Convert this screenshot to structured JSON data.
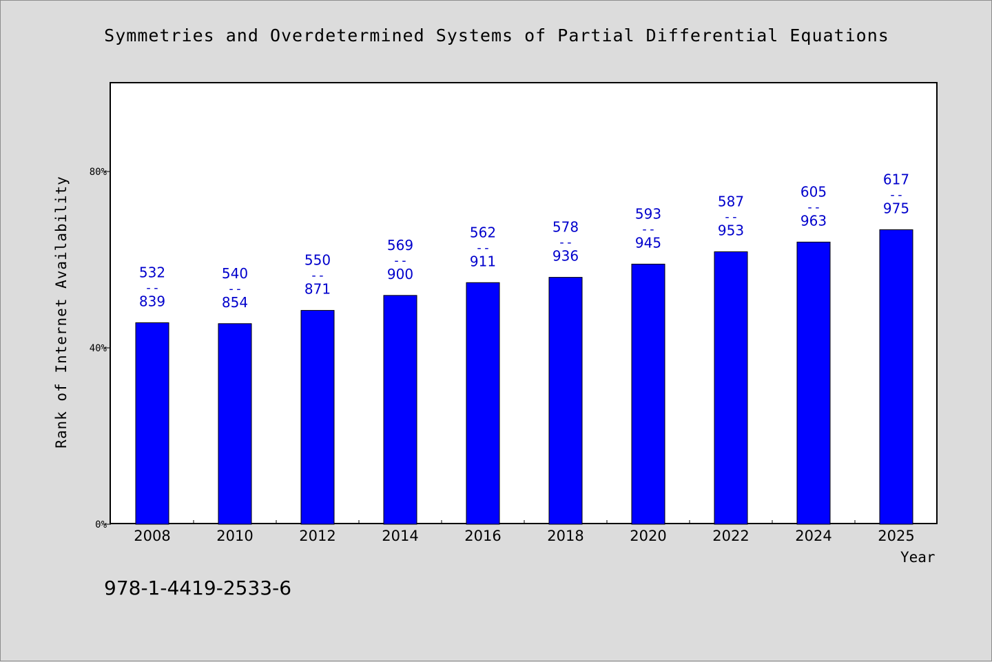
{
  "chart_data": {
    "type": "bar",
    "title": "Symmetries and Overdetermined Systems of Partial Differential Equations",
    "xlabel": "Year",
    "ylabel": "Rank of Internet Availability",
    "categories": [
      "2008",
      "2010",
      "2012",
      "2014",
      "2016",
      "2018",
      "2020",
      "2022",
      "2024",
      "2025"
    ],
    "series": [
      {
        "values": [
          45.7,
          45.5,
          48.5,
          51.9,
          54.8,
          56.0,
          59.0,
          61.8,
          64.0,
          66.8
        ]
      }
    ],
    "bar_labels": [
      {
        "top": "532",
        "sep": "--",
        "bottom": "839"
      },
      {
        "top": "540",
        "sep": "--",
        "bottom": "854"
      },
      {
        "top": "550",
        "sep": "--",
        "bottom": "871"
      },
      {
        "top": "569",
        "sep": "--",
        "bottom": "900"
      },
      {
        "top": "562",
        "sep": "--",
        "bottom": "911"
      },
      {
        "top": "578",
        "sep": "--",
        "bottom": "936"
      },
      {
        "top": "593",
        "sep": "--",
        "bottom": "945"
      },
      {
        "top": "587",
        "sep": "--",
        "bottom": "953"
      },
      {
        "top": "605",
        "sep": "--",
        "bottom": "963"
      },
      {
        "top": "617",
        "sep": "--",
        "bottom": "975"
      }
    ],
    "yticks": [
      0,
      40,
      80
    ],
    "ytick_labels": [
      "0%",
      "40%",
      "80%"
    ],
    "ylim": [
      0,
      100
    ],
    "grid": false,
    "colors": {
      "bar": "#0000ff",
      "bar_label": "#0000cc",
      "plot_bg": "#ffffff",
      "page_bg": "#dcdcdc"
    }
  },
  "footer": {
    "isbn": "978-1-4419-2533-6"
  }
}
